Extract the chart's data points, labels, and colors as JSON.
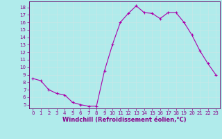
{
  "x": [
    0,
    1,
    2,
    3,
    4,
    5,
    6,
    7,
    8,
    9,
    10,
    11,
    12,
    13,
    14,
    15,
    16,
    17,
    18,
    19,
    20,
    21,
    22,
    23
  ],
  "y": [
    8.5,
    8.2,
    7.0,
    6.5,
    6.3,
    5.3,
    5.0,
    4.8,
    4.8,
    9.5,
    13.0,
    16.0,
    17.2,
    18.2,
    17.3,
    17.2,
    16.5,
    17.3,
    17.3,
    16.0,
    14.3,
    12.2,
    10.5,
    9.0
  ],
  "line_color": "#aa00aa",
  "marker": "+",
  "marker_size": 3,
  "xlabel": "Windchill (Refroidissement éolien,°C)",
  "xlabel_fontsize": 6,
  "ytick_labels": [
    "5",
    "6",
    "7",
    "8",
    "9",
    "10",
    "11",
    "12",
    "13",
    "14",
    "15",
    "16",
    "17",
    "18"
  ],
  "ytick_vals": [
    5,
    6,
    7,
    8,
    9,
    10,
    11,
    12,
    13,
    14,
    15,
    16,
    17,
    18
  ],
  "xtick_vals": [
    0,
    1,
    2,
    3,
    4,
    5,
    6,
    7,
    8,
    9,
    10,
    11,
    12,
    13,
    14,
    15,
    16,
    17,
    18,
    19,
    20,
    21,
    22,
    23
  ],
  "ylim": [
    4.5,
    18.8
  ],
  "xlim": [
    -0.5,
    23.5
  ],
  "bg_color": "#b0ebeb",
  "grid_color": "#c8e8e8",
  "line_width": 0.8,
  "tick_fontsize": 5,
  "tick_color": "#880088",
  "spine_color": "#660066"
}
